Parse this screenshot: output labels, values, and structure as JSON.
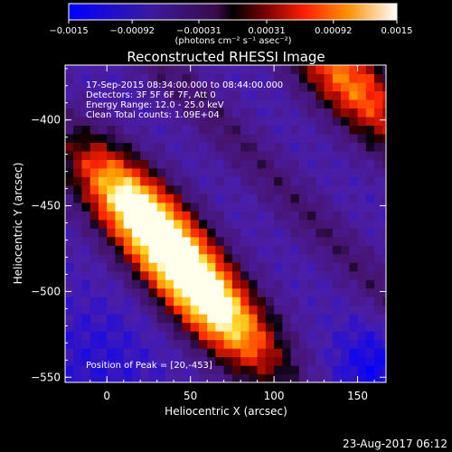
{
  "chart_data": {
    "type": "heatmap",
    "title": "Reconstructed RHESSI Image",
    "xlabel": "Heliocentric X (arcsec)",
    "ylabel": "Heliocentric Y (arcsec)",
    "xlim": [
      -25,
      167
    ],
    "ylim": [
      -553,
      -368
    ],
    "x_ticks": [
      "0",
      "50",
      "100",
      "150"
    ],
    "y_ticks": [
      "-400",
      "-450",
      "-500",
      "-550"
    ],
    "colorbar": {
      "range": [
        -0.0015,
        0.0015
      ],
      "ticks": [
        "-0.0015",
        "-0.00092",
        "-0.00031",
        "0.00031",
        "0.00092",
        "0.0015"
      ],
      "unit_label": "(photons cm⁻² s⁻¹ asec⁻²)"
    },
    "annotations": [
      "17-Sep-2015 08:34:00.000 to 08:44:00.000",
      "Detectors: 3F 5F 6F 7F, Att 0",
      "Energy Range: 12.0 - 25.0 keV",
      "Clean    Total counts: 1.09E+04"
    ],
    "peak_label": "Position of Peak = [20,-453]",
    "timestamp": "23-Aug-2017 06:12",
    "source_peaks": [
      {
        "x": 20,
        "y": -453,
        "value": 0.0015
      },
      {
        "x": 63,
        "y": -508,
        "value": 0.00145
      },
      {
        "x": 145,
        "y": -378,
        "value": 0.0011
      }
    ]
  }
}
